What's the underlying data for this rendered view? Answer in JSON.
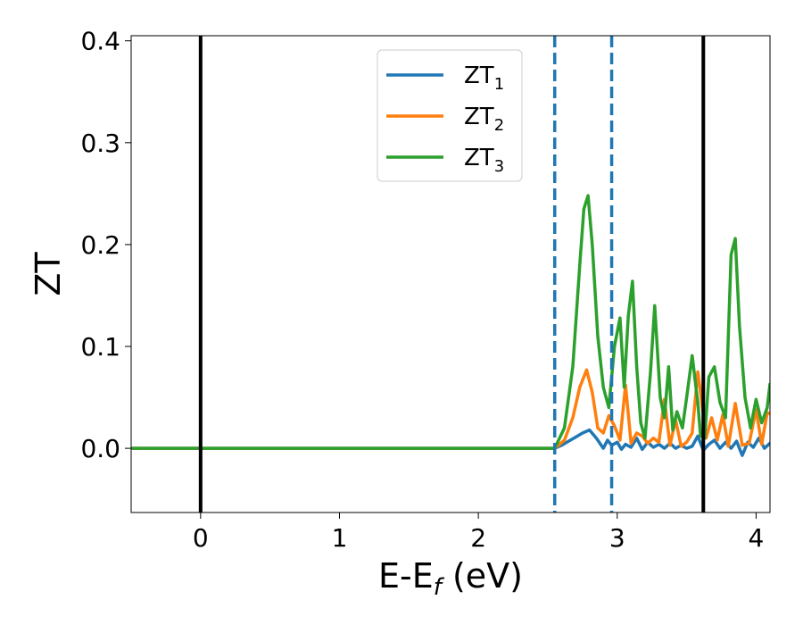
{
  "chart_data": {
    "type": "line",
    "title": "",
    "xlabel": "E-E",
    "xlabel_sub": "f",
    "xlabel_unit": " (eV)",
    "ylabel": "ZT",
    "xlim": [
      -0.5,
      4.1
    ],
    "ylim": [
      -0.063,
      0.405
    ],
    "xticks": [
      0,
      1,
      2,
      3,
      4
    ],
    "xtick_labels": [
      "0",
      "1",
      "2",
      "3",
      "4"
    ],
    "yticks": [
      0.0,
      0.1,
      0.2,
      0.3,
      0.4
    ],
    "ytick_labels": [
      "0.0",
      "0.1",
      "0.2",
      "0.3",
      "0.4"
    ],
    "grid": false,
    "legend_position": "top-center",
    "vertical_lines": [
      {
        "x": 0.0,
        "color": "#000000",
        "style": "solid"
      },
      {
        "x": 2.55,
        "color": "#1f77b4",
        "style": "dashed"
      },
      {
        "x": 2.96,
        "color": "#1f77b4",
        "style": "dashed"
      },
      {
        "x": 3.62,
        "color": "#000000",
        "style": "solid"
      }
    ],
    "series": [
      {
        "name": "ZT",
        "name_sub": "1",
        "color": "#1f77b4",
        "x": [
          -0.5,
          2.55,
          2.6,
          2.65,
          2.7,
          2.75,
          2.8,
          2.85,
          2.9,
          2.93,
          2.96,
          3.0,
          3.03,
          3.06,
          3.1,
          3.14,
          3.18,
          3.22,
          3.26,
          3.3,
          3.34,
          3.38,
          3.42,
          3.46,
          3.5,
          3.54,
          3.58,
          3.62,
          3.66,
          3.7,
          3.74,
          3.78,
          3.82,
          3.86,
          3.9,
          3.94,
          3.98,
          4.02,
          4.06,
          4.1
        ],
        "y": [
          0.0,
          0.0,
          0.003,
          0.007,
          0.011,
          0.015,
          0.018,
          0.01,
          0.0,
          0.008,
          0.003,
          0.006,
          -0.001,
          0.004,
          0.001,
          0.01,
          -0.001,
          0.006,
          0.001,
          0.004,
          0.0,
          0.005,
          0.0,
          0.003,
          0.0,
          0.002,
          0.012,
          -0.002,
          0.004,
          0.008,
          0.0,
          0.006,
          0.0,
          0.007,
          -0.007,
          0.006,
          0.001,
          0.01,
          0.0,
          0.005
        ]
      },
      {
        "name": "ZT",
        "name_sub": "2",
        "color": "#ff7f0e",
        "x": [
          -0.5,
          2.55,
          2.62,
          2.68,
          2.73,
          2.78,
          2.82,
          2.86,
          2.9,
          2.94,
          2.98,
          3.02,
          3.06,
          3.1,
          3.14,
          3.18,
          3.22,
          3.26,
          3.3,
          3.34,
          3.38,
          3.42,
          3.46,
          3.5,
          3.54,
          3.58,
          3.6,
          3.64,
          3.68,
          3.72,
          3.76,
          3.8,
          3.85,
          3.9,
          3.95,
          4.0,
          4.04,
          4.08,
          4.1
        ],
        "y": [
          0.0,
          0.0,
          0.008,
          0.03,
          0.06,
          0.077,
          0.055,
          0.02,
          0.015,
          0.032,
          0.022,
          0.008,
          0.062,
          0.005,
          0.015,
          0.012,
          0.005,
          0.01,
          0.006,
          0.048,
          0.003,
          0.028,
          0.002,
          0.006,
          0.015,
          0.075,
          0.055,
          0.01,
          0.03,
          0.008,
          0.033,
          0.002,
          0.044,
          0.003,
          0.005,
          0.038,
          0.004,
          0.035,
          0.034
        ]
      },
      {
        "name": "ZT",
        "name_sub": "3",
        "color": "#2ca02c",
        "x": [
          -0.5,
          2.55,
          2.62,
          2.68,
          2.73,
          2.76,
          2.79,
          2.82,
          2.86,
          2.9,
          2.94,
          2.98,
          3.02,
          3.05,
          3.08,
          3.11,
          3.14,
          3.17,
          3.2,
          3.24,
          3.27,
          3.31,
          3.34,
          3.37,
          3.4,
          3.43,
          3.47,
          3.5,
          3.54,
          3.58,
          3.6,
          3.63,
          3.66,
          3.7,
          3.74,
          3.78,
          3.82,
          3.85,
          3.88,
          3.92,
          3.96,
          4.0,
          4.04,
          4.08,
          4.1
        ],
        "y": [
          0.0,
          0.0,
          0.02,
          0.08,
          0.18,
          0.235,
          0.248,
          0.2,
          0.11,
          0.06,
          0.04,
          0.1,
          0.128,
          0.06,
          0.13,
          0.164,
          0.08,
          0.025,
          0.01,
          0.075,
          0.14,
          0.05,
          0.03,
          0.08,
          0.018,
          0.036,
          0.02,
          0.05,
          0.091,
          0.045,
          0.012,
          0.01,
          0.07,
          0.08,
          0.045,
          0.03,
          0.19,
          0.206,
          0.12,
          0.05,
          0.02,
          0.048,
          0.025,
          0.04,
          0.063
        ]
      }
    ]
  }
}
